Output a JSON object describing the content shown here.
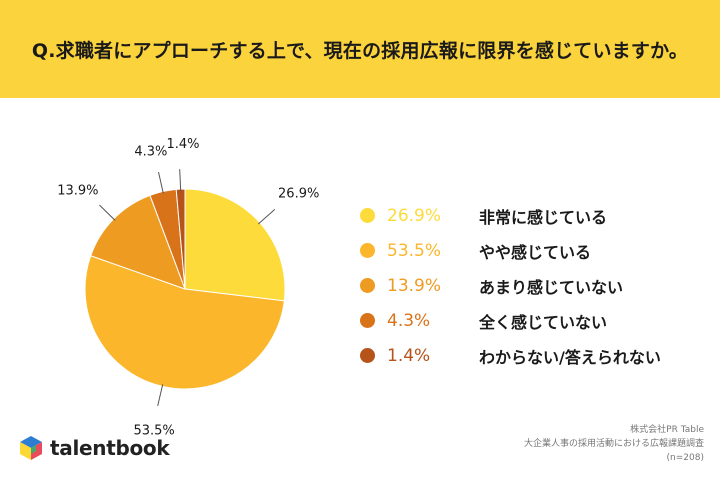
{
  "question": "Q.求職者にアプローチする上で、現在の採用広報に限界を感じていますか。",
  "chart_data": {
    "type": "pie",
    "title": "Q.求職者にアプローチする上で、現在の採用広報に限界を感じていますか。",
    "slices": [
      {
        "label": "非常に感じている",
        "value": 26.9,
        "display": "26.9%",
        "color": "#FDDB3A"
      },
      {
        "label": "やや感じている",
        "value": 53.5,
        "display": "53.5%",
        "color": "#FBB62B"
      },
      {
        "label": "あまり感じていない",
        "value": 13.9,
        "display": "13.9%",
        "color": "#EE9B22"
      },
      {
        "label": "全く感じていない",
        "value": 4.3,
        "display": "4.3%",
        "color": "#D9731A"
      },
      {
        "label": "わからない/答えられない",
        "value": 1.4,
        "display": "1.4%",
        "color": "#B5531A"
      }
    ],
    "legend": "right",
    "start_angle": "12 o'clock",
    "direction": "clockwise"
  },
  "brand": {
    "name": "talentbook",
    "logo_colors": [
      "#2E7DD1",
      "#FDD835",
      "#E84C5B",
      "#35B26B"
    ]
  },
  "source": {
    "company": "株式会社PR Table",
    "survey": "大企業人事の採用活動における広報課題調査",
    "sample": "(n=208)"
  }
}
